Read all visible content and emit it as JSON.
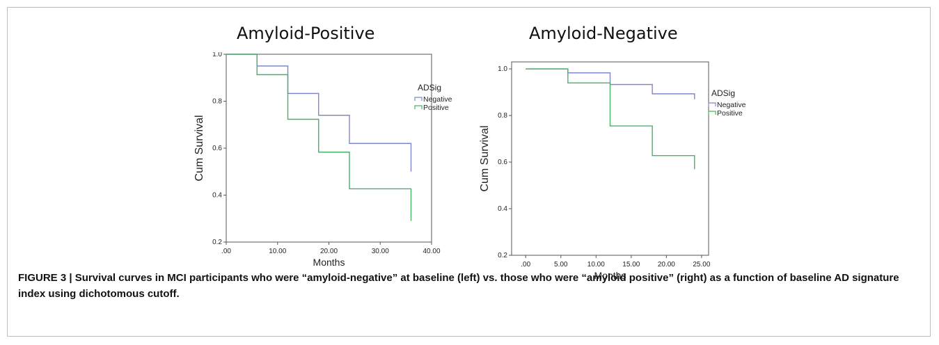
{
  "chart_data": [
    {
      "type": "line",
      "title": "Amyloid-Positive",
      "xlabel": "Months",
      "ylabel": "Cum Survival",
      "xlim": [
        0,
        40
      ],
      "ylim": [
        0.2,
        1.0
      ],
      "x_ticks": [
        ".00",
        "10.00",
        "20.00",
        "30.00",
        "40.00"
      ],
      "y_ticks": [
        "0.2",
        "0.4",
        "0.6",
        "0.8",
        "1.0"
      ],
      "legend_title": "ADSig",
      "legend_position": "right, outside",
      "grid": false,
      "series": [
        {
          "name": "Negative",
          "color": "#7f87c9",
          "step_x": [
            0,
            6,
            12,
            18,
            24,
            36
          ],
          "step_y": [
            1.0,
            0.95,
            0.833,
            0.74,
            0.62,
            0.5
          ]
        },
        {
          "name": "Positive",
          "color": "#4caf6a",
          "step_x": [
            0,
            6,
            12,
            18,
            24,
            36
          ],
          "step_y": [
            1.0,
            0.913,
            0.723,
            0.583,
            0.427,
            0.29
          ]
        }
      ]
    },
    {
      "type": "line",
      "title": "Amyloid-Negative",
      "xlabel": "Months",
      "ylabel": "Cum Survival",
      "xlim": [
        -2,
        26
      ],
      "ylim": [
        0.2,
        1.03
      ],
      "x_ticks": [
        ".00",
        "5.00",
        "10.00",
        "15.00",
        "20.00",
        "25.00"
      ],
      "y_ticks": [
        "0.2",
        "0.4",
        "0.6",
        "0.8",
        "1.0"
      ],
      "legend_title": "ADSig",
      "legend_position": "right, outside",
      "grid": false,
      "series": [
        {
          "name": "Negative",
          "color": "#7f87c9",
          "step_x": [
            0,
            6,
            12,
            18,
            24
          ],
          "step_y": [
            1.0,
            0.983,
            0.933,
            0.893,
            0.87
          ]
        },
        {
          "name": "Positive",
          "color": "#4caf6a",
          "step_x": [
            0,
            6,
            12,
            18,
            24
          ],
          "step_y": [
            1.0,
            0.94,
            0.755,
            0.628,
            0.57
          ]
        }
      ]
    }
  ],
  "caption": {
    "label": "FIGURE 3 |",
    "text": "Survival curves in MCI participants who were “amyloid-negative” at baseline (left) vs. those who were “amyloid positive” (right) as a function of baseline AD signature index using dichotomous cutoff."
  }
}
